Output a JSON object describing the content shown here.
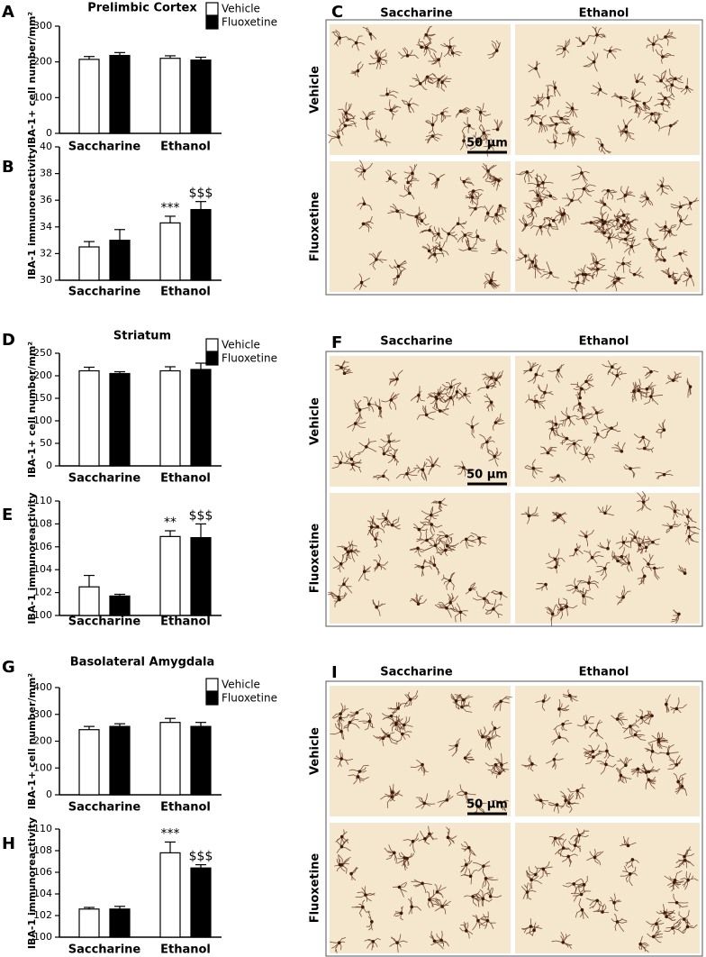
{
  "chart_data": [
    {
      "type": "bar",
      "panel_label": "A",
      "title": "Prelimbic Cortex",
      "ylabel": "IBA-1+ cell number/mm²",
      "categories": [
        "Saccharine",
        "Ethanol"
      ],
      "series": [
        {
          "name": "Vehicle",
          "color": "#ffffff",
          "values": [
            207,
            210
          ],
          "errors": [
            8,
            7
          ]
        },
        {
          "name": "Fluoxetine",
          "color": "#000000",
          "values": [
            218,
            205
          ],
          "errors": [
            8,
            8
          ]
        }
      ],
      "ylim": [
        0,
        300
      ],
      "yticks": [
        0,
        100,
        200,
        300
      ],
      "legend": "top-right"
    },
    {
      "type": "bar",
      "panel_label": "B",
      "ylabel": "IBA-1 immunoreactivity",
      "categories": [
        "Saccharine",
        "Ethanol"
      ],
      "series": [
        {
          "color": "#ffffff",
          "values": [
            32.5,
            34.3
          ],
          "errors": [
            0.4,
            0.5
          ],
          "significance": [
            null,
            "***"
          ]
        },
        {
          "color": "#000000",
          "values": [
            33.0,
            35.3
          ],
          "errors": [
            0.8,
            0.6
          ],
          "significance": [
            null,
            "$$$"
          ]
        }
      ],
      "ylim": [
        30,
        40
      ],
      "yticks": [
        30,
        32,
        34,
        36,
        38,
        40
      ]
    },
    {
      "type": "bar",
      "panel_label": "D",
      "title": "Striatum",
      "ylabel": "IBA-1+ cell number/mm²",
      "categories": [
        "Saccharine",
        "Ethanol"
      ],
      "series": [
        {
          "name": "Vehicle",
          "color": "#ffffff",
          "values": [
            211,
            211
          ],
          "errors": [
            8,
            9
          ]
        },
        {
          "name": "Fluoxetine",
          "color": "#000000",
          "values": [
            205,
            214
          ],
          "errors": [
            4,
            14
          ]
        }
      ],
      "ylim": [
        0,
        250
      ],
      "yticks": [
        0,
        50,
        100,
        150,
        200,
        250
      ],
      "legend": "top-right"
    },
    {
      "type": "bar",
      "panel_label": "E",
      "ylabel": "IBA-1 immunoreactivity",
      "categories": [
        "Saccharine",
        "Ethanol"
      ],
      "series": [
        {
          "color": "#ffffff",
          "values": [
            102.5,
            106.9
          ],
          "errors": [
            1.0,
            0.5
          ],
          "significance": [
            null,
            "**"
          ]
        },
        {
          "color": "#000000",
          "values": [
            101.7,
            106.8
          ],
          "errors": [
            0.15,
            1.2
          ],
          "significance": [
            null,
            "$$$"
          ]
        }
      ],
      "ylim": [
        100,
        110
      ],
      "yticks": [
        100,
        102,
        104,
        106,
        108,
        110
      ]
    },
    {
      "type": "bar",
      "panel_label": "G",
      "title": "Basolateral Amygdala",
      "ylabel": "IBA-1+ cell number/mm²",
      "categories": [
        "Saccharine",
        "Ethanol"
      ],
      "series": [
        {
          "name": "Vehicle",
          "color": "#ffffff",
          "values": [
            243,
            270
          ],
          "errors": [
            12,
            15
          ]
        },
        {
          "name": "Fluoxetine",
          "color": "#000000",
          "values": [
            255,
            255
          ],
          "errors": [
            10,
            15
          ]
        }
      ],
      "ylim": [
        0,
        400
      ],
      "yticks": [
        0,
        100,
        200,
        300,
        400
      ],
      "legend": "top-right"
    },
    {
      "type": "bar",
      "panel_label": "H",
      "ylabel": "IBA-1 immunoreactivity",
      "categories": [
        "Saccharine",
        "Ethanol"
      ],
      "series": [
        {
          "color": "#ffffff",
          "values": [
            102.6,
            107.8
          ],
          "errors": [
            0.15,
            1.0
          ],
          "significance": [
            null,
            "***"
          ]
        },
        {
          "color": "#000000",
          "values": [
            102.6,
            106.4
          ],
          "errors": [
            0.25,
            0.3
          ],
          "significance": [
            null,
            "$$$"
          ]
        }
      ],
      "ylim": [
        100,
        110
      ],
      "yticks": [
        100,
        102,
        104,
        106,
        108,
        110
      ]
    }
  ],
  "image_panels": [
    {
      "panel_label": "C",
      "columns": [
        "Saccharine",
        "Ethanol"
      ],
      "rows": [
        "Vehicle",
        "Fluoxetine"
      ],
      "scale_bar": "50 µm"
    },
    {
      "panel_label": "F",
      "columns": [
        "Saccharine",
        "Ethanol"
      ],
      "rows": [
        "Vehicle",
        "Fluoxetine"
      ],
      "scale_bar": "50 µm"
    },
    {
      "panel_label": "I",
      "columns": [
        "Saccharine",
        "Ethanol"
      ],
      "rows": [
        "Vehicle",
        "Fluoxetine"
      ],
      "scale_bar": "50 µm"
    }
  ]
}
